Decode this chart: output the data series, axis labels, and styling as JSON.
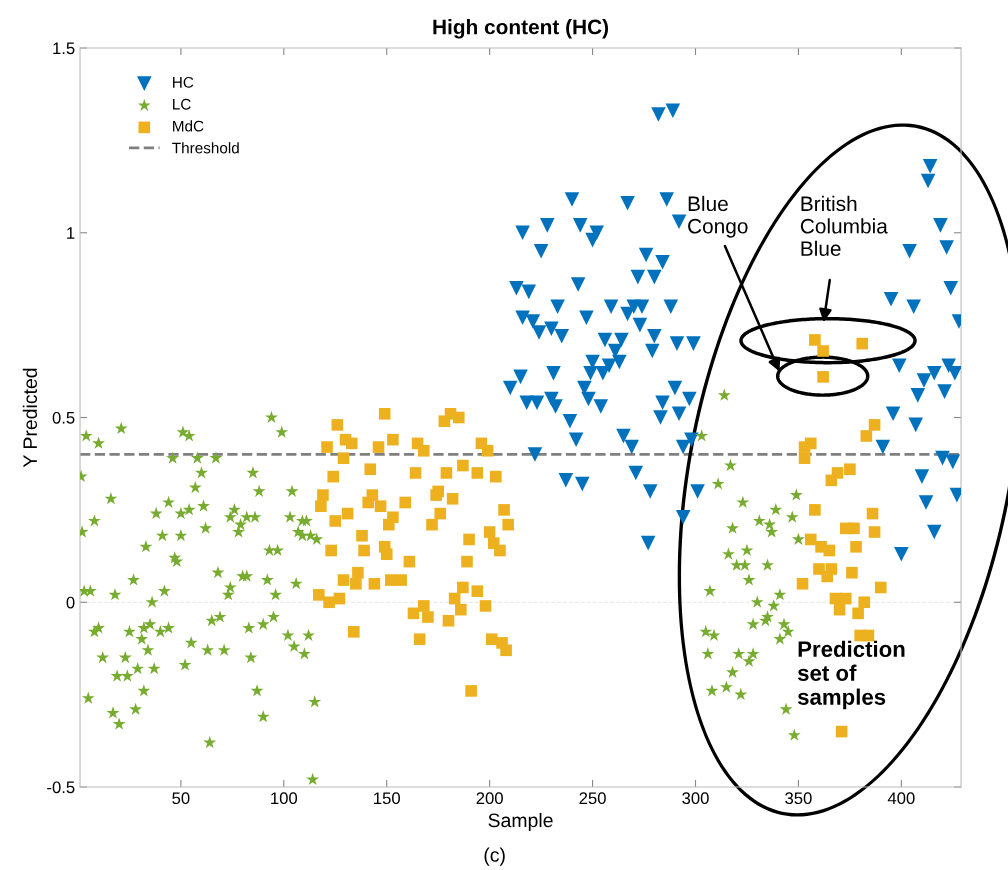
{
  "chart_data": {
    "type": "scatter",
    "title": "High content (HC)",
    "xlabel": "Sample",
    "ylabel": "Y Predicted",
    "xlim": [
      1,
      429
    ],
    "ylim": [
      -0.5,
      1.5
    ],
    "xticks": [
      50,
      100,
      150,
      200,
      250,
      300,
      350,
      400
    ],
    "yticks": [
      -0.5,
      0,
      0.5,
      1,
      1.5
    ],
    "grid": false,
    "legend": "top left",
    "ref_lines": [
      {
        "axis": "y",
        "value": 0.4,
        "label": "Threshold",
        "color": "#808080",
        "line_style": "dashed"
      },
      {
        "axis": "y",
        "value": 0,
        "color": "#e6e6e6",
        "line_style": "dashed"
      }
    ],
    "annotations": [
      "Blue Congo",
      "British Columbia Blue",
      "Prediction set of samples",
      "(c)"
    ],
    "series": [
      {
        "name": "HC",
        "color": "#0072bd",
        "marker": "triangle",
        "x": [
          282,
          289,
          240,
          267,
          286,
          216,
          228,
          244,
          252,
          250,
          292,
          225,
          276,
          284,
          272,
          280,
          243,
          213,
          219,
          233,
          247,
          259,
          270,
          274,
          267,
          288,
          216,
          221,
          224,
          230,
          235,
          273,
          256,
          264,
          280,
          279,
          291,
          299,
          250,
          261,
          263,
          255,
          249,
          258,
          215,
          231,
          210,
          246,
          290,
          218,
          223,
          230,
          232,
          248,
          254,
          284,
          297,
          283,
          292,
          239,
          242,
          265,
          269,
          298,
          294,
          222,
          271,
          237,
          245,
          278,
          301,
          294,
          277,
          414,
          413,
          419,
          404,
          422,
          424,
          395,
          406,
          428,
          399,
          423,
          411,
          416,
          426,
          408,
          421,
          396,
          407,
          391,
          420,
          425,
          410,
          412,
          427,
          416,
          400
        ],
        "values": [
          1.32,
          1.33,
          1.09,
          1.08,
          1.09,
          1.0,
          1.02,
          1.02,
          1.0,
          0.98,
          1.03,
          0.95,
          0.94,
          0.92,
          0.88,
          0.88,
          0.86,
          0.85,
          0.84,
          0.8,
          0.77,
          0.8,
          0.8,
          0.8,
          0.78,
          0.8,
          0.77,
          0.76,
          0.73,
          0.74,
          0.72,
          0.75,
          0.71,
          0.71,
          0.72,
          0.68,
          0.7,
          0.7,
          0.65,
          0.68,
          0.65,
          0.62,
          0.62,
          0.64,
          0.61,
          0.62,
          0.58,
          0.58,
          0.58,
          0.54,
          0.54,
          0.55,
          0.53,
          0.55,
          0.53,
          0.54,
          0.55,
          0.5,
          0.51,
          0.49,
          0.44,
          0.45,
          0.42,
          0.44,
          0.42,
          0.4,
          0.35,
          0.33,
          0.32,
          0.3,
          0.3,
          0.23,
          0.16,
          1.18,
          1.14,
          1.02,
          0.95,
          0.96,
          0.85,
          0.82,
          0.8,
          0.76,
          0.64,
          0.64,
          0.6,
          0.62,
          0.62,
          0.56,
          0.57,
          0.51,
          0.48,
          0.42,
          0.39,
          0.38,
          0.34,
          0.27,
          0.29,
          0.19,
          0.13
        ]
      },
      {
        "name": "LC",
        "color": "#77ac30",
        "marker": "star",
        "x": [
          94,
          99,
          4,
          10,
          21,
          51,
          54,
          46,
          58,
          67,
          1.5,
          60,
          85,
          16,
          57,
          88,
          104,
          44,
          38,
          50,
          54,
          61,
          76,
          74,
          86,
          8,
          2,
          79,
          82,
          78,
          62,
          41,
          50,
          103,
          109,
          111,
          107,
          109,
          113,
          116,
          33,
          93,
          97,
          47,
          48,
          68,
          27,
          80,
          82,
          92,
          106,
          3,
          6,
          18,
          42,
          74,
          73,
          96,
          36,
          8,
          10,
          25,
          32,
          35,
          31,
          40,
          44,
          69,
          65,
          55,
          83,
          90,
          95,
          102,
          105,
          112,
          110,
          12,
          23,
          34,
          63,
          71,
          84,
          19,
          24,
          29,
          37,
          52,
          5,
          32,
          87,
          115,
          17,
          20,
          28,
          90,
          64,
          114,
          314,
          303,
          317,
          311,
          323,
          349,
          339,
          347,
          331,
          336,
          337,
          318,
          350,
          325,
          316,
          320,
          324,
          335,
          326,
          307,
          341,
          330,
          338,
          335,
          334,
          328,
          343,
          345,
          305,
          309,
          341,
          306,
          321,
          328,
          326,
          318,
          308,
          315,
          322,
          344,
          348
        ],
        "values": [
          0.5,
          0.46,
          0.45,
          0.43,
          0.47,
          0.46,
          0.45,
          0.39,
          0.39,
          0.39,
          0.34,
          0.35,
          0.35,
          0.28,
          0.31,
          0.3,
          0.3,
          0.27,
          0.24,
          0.24,
          0.25,
          0.26,
          0.25,
          0.23,
          0.23,
          0.22,
          0.19,
          0.21,
          0.23,
          0.19,
          0.2,
          0.18,
          0.18,
          0.23,
          0.22,
          0.22,
          0.19,
          0.18,
          0.18,
          0.17,
          0.15,
          0.14,
          0.14,
          0.12,
          0.11,
          0.08,
          0.06,
          0.07,
          0.07,
          0.06,
          0.05,
          0.03,
          0.03,
          0.02,
          0.03,
          0.04,
          0.02,
          0.02,
          0.0,
          -0.08,
          -0.07,
          -0.08,
          -0.07,
          -0.06,
          -0.1,
          -0.08,
          -0.07,
          -0.04,
          -0.05,
          -0.11,
          -0.07,
          -0.06,
          -0.04,
          -0.09,
          -0.12,
          -0.09,
          -0.14,
          -0.15,
          -0.15,
          -0.13,
          -0.13,
          -0.13,
          -0.15,
          -0.2,
          -0.2,
          -0.18,
          -0.18,
          -0.17,
          -0.26,
          -0.24,
          -0.24,
          -0.27,
          -0.3,
          -0.33,
          -0.29,
          -0.31,
          -0.38,
          -0.48,
          0.56,
          0.45,
          0.37,
          0.32,
          0.27,
          0.29,
          0.25,
          0.23,
          0.22,
          0.21,
          0.19,
          0.2,
          0.17,
          0.14,
          0.13,
          0.1,
          0.1,
          0.1,
          0.06,
          0.03,
          0.02,
          0.0,
          -0.01,
          -0.04,
          -0.05,
          -0.06,
          -0.06,
          -0.08,
          -0.08,
          -0.09,
          -0.1,
          -0.14,
          -0.14,
          -0.14,
          -0.16,
          -0.19,
          -0.24,
          -0.23,
          -0.25,
          -0.29,
          -0.36
        ]
      },
      {
        "name": "MdC",
        "color": "#edb120",
        "marker": "square",
        "x": [
          149,
          126,
          178,
          181,
          185,
          130,
          133,
          153,
          165,
          168,
          121,
          146,
          196,
          199,
          129,
          142,
          164,
          179,
          187,
          194,
          203,
          124,
          119,
          118,
          143,
          141,
          159,
          175,
          174,
          182,
          147,
          131,
          125,
          153,
          151,
          176,
          172,
          207,
          209,
          138,
          139,
          149,
          150,
          190,
          200,
          202,
          205,
          123,
          161,
          189,
          136,
          129,
          135,
          144,
          152,
          157,
          187,
          194,
          117,
          122,
          127,
          163,
          168,
          170,
          183,
          186,
          198,
          180,
          134,
          166,
          201,
          206,
          208,
          191,
          358,
          362,
          381,
          362,
          387,
          383,
          356,
          353,
          353,
          375,
          369,
          366,
          358,
          386,
          373,
          377,
          387,
          356,
          361,
          365,
          378,
          352,
          360,
          366,
          364,
          376,
          390,
          368,
          373,
          382,
          370,
          379,
          380,
          384,
          371
        ],
        "values": [
          0.51,
          0.48,
          0.49,
          0.51,
          0.5,
          0.44,
          0.43,
          0.44,
          0.43,
          0.41,
          0.42,
          0.42,
          0.43,
          0.41,
          0.39,
          0.36,
          0.35,
          0.35,
          0.37,
          0.35,
          0.34,
          0.34,
          0.29,
          0.26,
          0.29,
          0.27,
          0.27,
          0.3,
          0.29,
          0.28,
          0.26,
          0.24,
          0.22,
          0.23,
          0.21,
          0.24,
          0.21,
          0.25,
          0.21,
          0.18,
          0.14,
          0.15,
          0.13,
          0.17,
          0.19,
          0.16,
          0.14,
          0.14,
          0.11,
          0.11,
          0.08,
          0.06,
          0.05,
          0.05,
          0.06,
          0.06,
          0.04,
          0.03,
          0.02,
          0.0,
          0.01,
          -0.03,
          -0.01,
          -0.04,
          0.01,
          -0.02,
          -0.01,
          -0.05,
          -0.08,
          -0.1,
          -0.1,
          -0.11,
          -0.13,
          -0.24,
          0.71,
          0.68,
          0.7,
          0.61,
          0.48,
          0.45,
          0.43,
          0.42,
          0.39,
          0.36,
          0.35,
          0.33,
          0.25,
          0.24,
          0.2,
          0.2,
          0.19,
          0.17,
          0.15,
          0.14,
          0.15,
          0.05,
          0.09,
          0.09,
          0.07,
          0.08,
          0.04,
          0.01,
          0.01,
          0.0,
          -0.02,
          -0.03,
          -0.09,
          -0.09,
          -0.35
        ]
      }
    ]
  }
}
